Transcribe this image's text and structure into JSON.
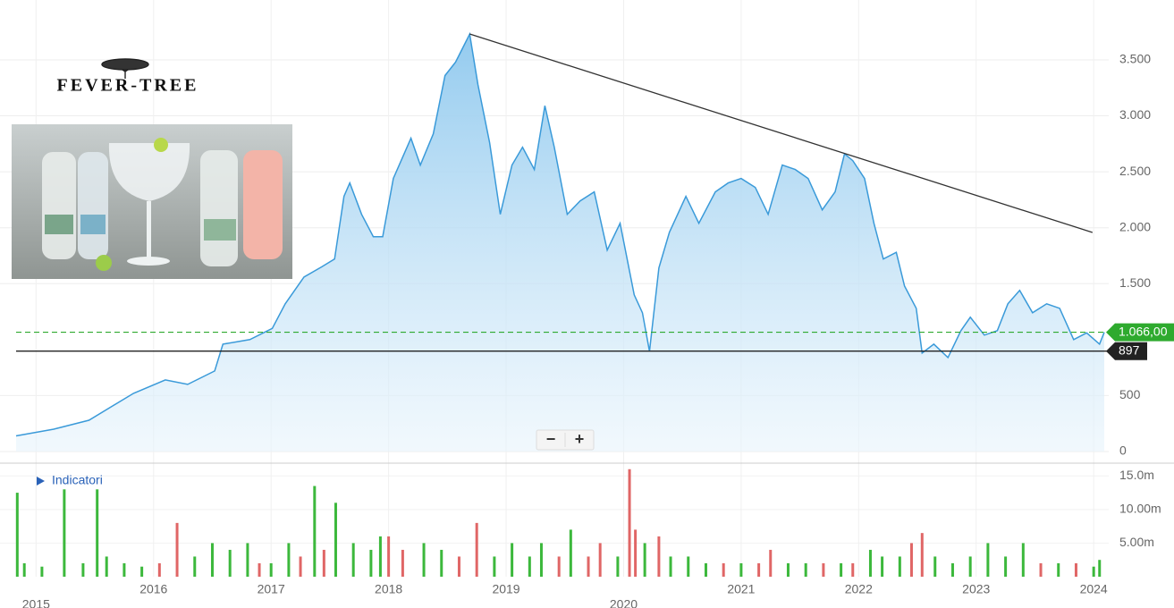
{
  "logo": "FEVER-TREE",
  "indicators": "Indicatori",
  "zoom": {
    "minus": "−",
    "plus": "+"
  },
  "chart_data": [
    {
      "type": "area",
      "color": "#3a9ad9",
      "x": [
        2014.83,
        2015.15,
        2015.45,
        2015.83,
        2016.1,
        2016.29,
        2016.52,
        2016.59,
        2016.82,
        2017.01,
        2017.12,
        2017.28,
        2017.43,
        2017.54,
        2017.62,
        2017.67,
        2017.77,
        2017.87,
        2017.95,
        2018.04,
        2018.19,
        2018.27,
        2018.38,
        2018.48,
        2018.57,
        2018.69,
        2018.76,
        2018.86,
        2018.95,
        2019.05,
        2019.14,
        2019.24,
        2019.33,
        2019.41,
        2019.52,
        2019.63,
        2019.75,
        2019.86,
        2019.97,
        2020.09,
        2020.16,
        2020.22,
        2020.3,
        2020.39,
        2020.53,
        2020.64,
        2020.78,
        2020.89,
        2021.0,
        2021.12,
        2021.23,
        2021.35,
        2021.46,
        2021.57,
        2021.69,
        2021.8,
        2021.88,
        2021.95,
        2022.05,
        2022.13,
        2022.21,
        2022.32,
        2022.39,
        2022.49,
        2022.54,
        2022.64,
        2022.76,
        2022.87,
        2022.95,
        2023.07,
        2023.18,
        2023.27,
        2023.37,
        2023.48,
        2023.6,
        2023.71,
        2023.83,
        2023.94,
        2024.05,
        2024.09
      ],
      "values": [
        140,
        200,
        280,
        520,
        640,
        600,
        720,
        960,
        1000,
        1100,
        1320,
        1560,
        1650,
        1720,
        2280,
        2400,
        2120,
        1920,
        1920,
        2440,
        2800,
        2560,
        2840,
        3360,
        3480,
        3730,
        3280,
        2760,
        2120,
        2560,
        2720,
        2520,
        3090,
        2720,
        2120,
        2240,
        2320,
        1800,
        2040,
        1400,
        1240,
        895,
        1640,
        1960,
        2280,
        2040,
        2320,
        2400,
        2440,
        2360,
        2120,
        2560,
        2520,
        2440,
        2160,
        2320,
        2660,
        2600,
        2440,
        2040,
        1720,
        1780,
        1480,
        1280,
        880,
        960,
        840,
        1080,
        1200,
        1040,
        1080,
        1320,
        1440,
        1240,
        1320,
        1280,
        1000,
        1060,
        960,
        1066
      ],
      "xlim": [
        2014.83,
        2024.09
      ],
      "ylim": [
        0,
        4035
      ],
      "yticks": [
        0,
        500,
        {
          "value": 1500,
          "label": "1.500"
        },
        {
          "value": 2000,
          "label": "2.000"
        },
        {
          "value": 2500,
          "label": "2.500"
        },
        {
          "value": 3000,
          "label": "3.000"
        },
        {
          "value": 3500,
          "label": "3.500"
        }
      ],
      "grid": true,
      "trendline": {
        "x": [
          2018.69,
          2023.99
        ],
        "values": [
          3731,
          1958
        ],
        "color": "#333333"
      },
      "reference_lines": [
        {
          "value": 1066,
          "label": "1.066,00",
          "color": "#2eaa2e",
          "style": "dashed"
        },
        {
          "value": 897,
          "label": "897",
          "color": "#222222",
          "style": "solid"
        }
      ]
    },
    {
      "type": "bar",
      "x": [
        2014.84,
        2014.9,
        2015.05,
        2015.24,
        2015.4,
        2015.52,
        2015.6,
        2015.75,
        2015.9,
        2016.05,
        2016.2,
        2016.35,
        2016.5,
        2016.65,
        2016.8,
        2016.9,
        2017.0,
        2017.15,
        2017.25,
        2017.37,
        2017.45,
        2017.55,
        2017.7,
        2017.85,
        2017.93,
        2018.0,
        2018.12,
        2018.3,
        2018.45,
        2018.6,
        2018.75,
        2018.9,
        2019.05,
        2019.2,
        2019.3,
        2019.45,
        2019.55,
        2019.7,
        2019.8,
        2019.95,
        2020.05,
        2020.1,
        2020.18,
        2020.3,
        2020.4,
        2020.55,
        2020.7,
        2020.85,
        2021.0,
        2021.15,
        2021.25,
        2021.4,
        2021.55,
        2021.7,
        2021.85,
        2021.95,
        2022.1,
        2022.2,
        2022.35,
        2022.45,
        2022.54,
        2022.65,
        2022.8,
        2022.95,
        2023.1,
        2023.25,
        2023.4,
        2023.55,
        2023.7,
        2023.85,
        2024.0,
        2024.05
      ],
      "values": [
        12500000,
        2000000,
        1500000,
        13000000,
        2000000,
        13000000,
        3000000,
        2000000,
        1500000,
        2000000,
        8000000,
        3000000,
        5000000,
        4000000,
        5000000,
        2000000,
        2000000,
        5000000,
        3000000,
        13500000,
        4000000,
        11000000,
        5000000,
        4000000,
        6000000,
        6000000,
        4000000,
        5000000,
        4000000,
        3000000,
        8000000,
        3000000,
        5000000,
        3000000,
        5000000,
        3000000,
        7000000,
        3000000,
        5000000,
        3000000,
        16000000,
        7000000,
        5000000,
        6000000,
        3000000,
        3000000,
        2000000,
        2000000,
        2000000,
        2000000,
        4000000,
        2000000,
        2000000,
        2000000,
        2000000,
        2000000,
        4000000,
        3000000,
        3000000,
        5000000,
        6500000,
        3000000,
        2000000,
        3000000,
        5000000,
        3000000,
        5000000,
        2000000,
        2000000,
        2000000,
        1500000,
        2500000
      ],
      "colors": [
        "#3cb83c",
        "#3cb83c",
        "#3cb83c",
        "#3cb83c",
        "#3cb83c",
        "#3cb83c",
        "#3cb83c",
        "#3cb83c",
        "#3cb83c",
        "#e06666",
        "#e06666",
        "#3cb83c",
        "#3cb83c",
        "#3cb83c",
        "#3cb83c",
        "#e06666",
        "#3cb83c",
        "#3cb83c",
        "#e06666",
        "#3cb83c",
        "#e06666",
        "#3cb83c",
        "#3cb83c",
        "#3cb83c",
        "#3cb83c",
        "#e06666",
        "#e06666",
        "#3cb83c",
        "#3cb83c",
        "#e06666",
        "#e06666",
        "#3cb83c",
        "#3cb83c",
        "#3cb83c",
        "#3cb83c",
        "#e06666",
        "#3cb83c",
        "#e06666",
        "#e06666",
        "#3cb83c",
        "#e06666",
        "#e06666",
        "#3cb83c",
        "#e06666",
        "#3cb83c",
        "#3cb83c",
        "#3cb83c",
        "#e06666",
        "#3cb83c",
        "#e06666",
        "#e06666",
        "#3cb83c",
        "#3cb83c",
        "#e06666",
        "#3cb83c",
        "#e06666",
        "#3cb83c",
        "#3cb83c",
        "#3cb83c",
        "#e06666",
        "#e06666",
        "#3cb83c",
        "#3cb83c",
        "#3cb83c",
        "#3cb83c",
        "#3cb83c",
        "#3cb83c",
        "#e06666",
        "#3cb83c",
        "#e06666",
        "#3cb83c",
        "#3cb83c"
      ],
      "xlim": [
        2014.83,
        2024.09
      ],
      "ylim": [
        0,
        16900000
      ],
      "yticks": [
        {
          "value": 5000000,
          "label": "5.00m"
        },
        {
          "value": 10000000,
          "label": "10.00m"
        },
        {
          "value": 15000000,
          "label": "15.0m"
        }
      ],
      "xticks": [
        2015,
        2016,
        2017,
        2018,
        2019,
        2020,
        2021,
        2022,
        2023,
        2024
      ]
    }
  ]
}
